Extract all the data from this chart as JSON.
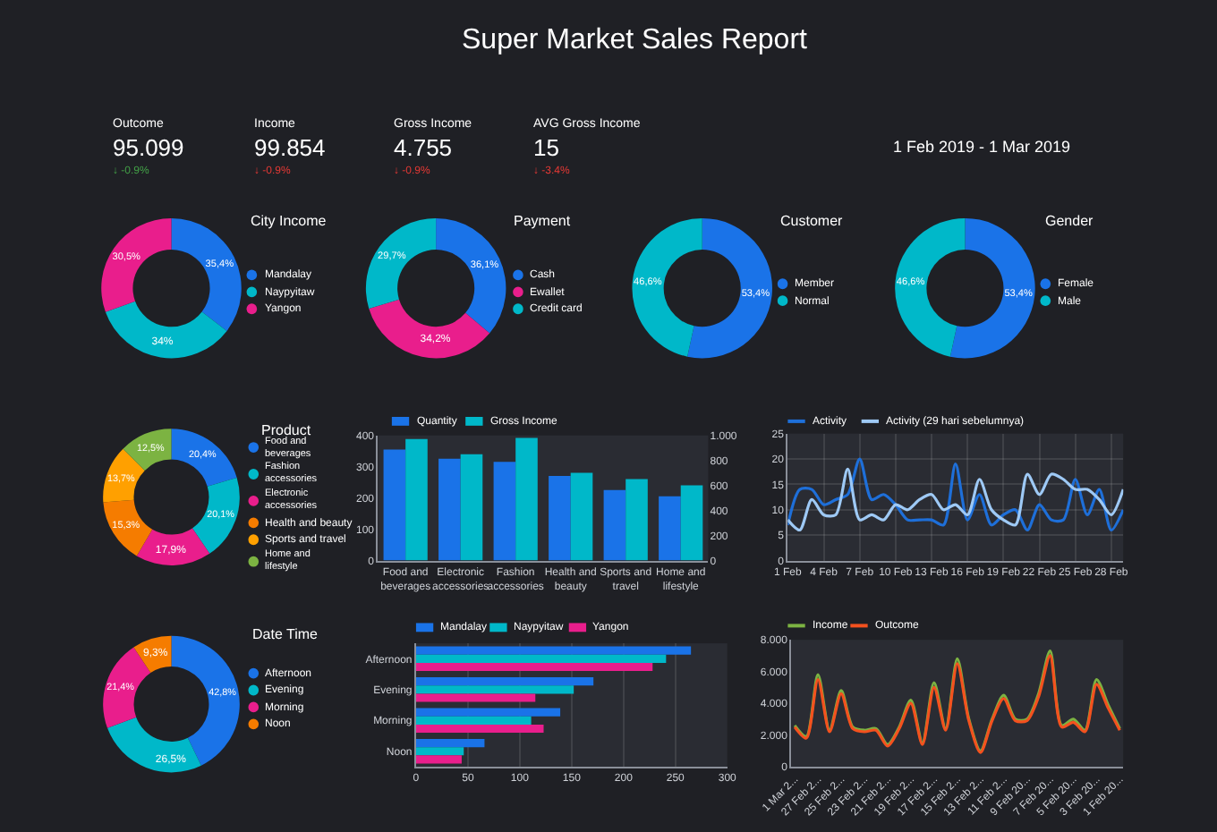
{
  "chart_data": [
    {
      "type": "other",
      "title": "Super Market Sales Report",
      "annotations": [
        "Outcome",
        "95.099",
        "↓ -0.9%",
        "Income",
        "99.854",
        "↓ -0.9%",
        "Gross Income",
        "4.755",
        "↓ -0.9%",
        "AVG Gross Income",
        "15",
        "↓ -3.4%",
        "1 Feb 2019 - 1 Mar 2019"
      ]
    },
    {
      "type": "donut",
      "title": "City Income",
      "categories": [
        "Mandalay",
        "Naypyitaw",
        "Yangon"
      ],
      "values": [
        35.4,
        34,
        30.5
      ],
      "value_labels": [
        "35,4%",
        "34%",
        "30,5%"
      ],
      "colors": [
        "#1a73e8",
        "#00b8c9",
        "#e91e8c"
      ],
      "legend": "right"
    },
    {
      "type": "donut",
      "title": "Payment",
      "categories": [
        "Cash",
        "Ewallet",
        "Credit card"
      ],
      "values": [
        36.1,
        34.2,
        29.7
      ],
      "value_labels": [
        "36,1%",
        "34,2%",
        "29,7%"
      ],
      "colors": [
        "#1a73e8",
        "#e91e8c",
        "#00b8c9"
      ],
      "legend": "right"
    },
    {
      "type": "donut",
      "title": "Customer",
      "categories": [
        "Member",
        "Normal"
      ],
      "values": [
        53.4,
        46.6
      ],
      "value_labels": [
        "53,4%",
        "46,6%"
      ],
      "colors": [
        "#1a73e8",
        "#00b8c9"
      ],
      "legend": "right"
    },
    {
      "type": "donut",
      "title": "Gender",
      "categories": [
        "Female",
        "Male"
      ],
      "values": [
        53.4,
        46.6
      ],
      "value_labels": [
        "53,4%",
        "46,6%"
      ],
      "colors": [
        "#1a73e8",
        "#00b8c9"
      ],
      "legend": "right"
    },
    {
      "type": "donut",
      "title": "Product",
      "categories": [
        "Food and beverages",
        "Fashion accessories",
        "Electronic accessories",
        "Health and beauty",
        "Sports and travel",
        "Home and lifestyle"
      ],
      "values": [
        20.4,
        20.1,
        17.9,
        15.3,
        13.7,
        12.5
      ],
      "value_labels": [
        "20,4%",
        "20,1%",
        "17,9%",
        "15,3%",
        "13,7%",
        "12,5%"
      ],
      "colors": [
        "#1a73e8",
        "#00b8c9",
        "#e91e8c",
        "#f57c00",
        "#ffa000",
        "#7cb342"
      ],
      "legend": "right"
    },
    {
      "type": "bar",
      "categories": [
        "Food and beverages",
        "Electronic accessories",
        "Fashion accessories",
        "Health and beauty",
        "Sports and travel",
        "Home and lifestyle"
      ],
      "series": [
        {
          "name": "Quantity",
          "color": "#1a73e8",
          "values": [
            355,
            325,
            315,
            270,
            225,
            205
          ]
        },
        {
          "name": "Gross Income",
          "color": "#00b8c9",
          "values": [
            970,
            850,
            980,
            700,
            650,
            600
          ],
          "axis": "y2"
        }
      ],
      "ylim": [
        0,
        400
      ],
      "yticks": [
        0,
        100,
        200,
        300,
        400
      ],
      "y2lim": [
        0,
        1000
      ],
      "y2ticks": [
        0,
        200,
        400,
        600,
        800,
        {
          "value": 1000,
          "label": "1.000"
        }
      ],
      "legend": "top left"
    },
    {
      "type": "line",
      "x": [
        "--02-01",
        "--02-02",
        "--02-03",
        "--02-04",
        "--02-05",
        "--02-06",
        "--02-07",
        "--02-08",
        "--02-09",
        "--02-10",
        "--02-11",
        "--02-12",
        "--02-13",
        "--02-14",
        "--02-15",
        "--02-16",
        "--02-17",
        "--02-18",
        "--02-19",
        "--02-20",
        "--02-21",
        "--02-22",
        "--02-23",
        "--02-24",
        "--02-25",
        "--02-26",
        "--02-27",
        "--02-28",
        "--03-01"
      ],
      "series": [
        {
          "name": "Activity",
          "color": "#1e6fd9",
          "values": [
            7,
            14,
            14,
            11,
            12,
            13,
            20,
            12,
            13,
            11,
            8,
            8,
            8,
            7,
            19,
            8,
            13,
            7,
            9,
            10,
            6,
            11,
            8,
            8,
            16,
            9,
            14,
            6,
            10
          ]
        },
        {
          "name": "Activity (29 hari sebelumnya)",
          "color": "#9ec9f5",
          "values": [
            8,
            6,
            12,
            9,
            9,
            18,
            8,
            9,
            8,
            11,
            10,
            12,
            13,
            10,
            11,
            9,
            16,
            10,
            8,
            7,
            17,
            13,
            17,
            16,
            14,
            14,
            12,
            9,
            14
          ]
        }
      ],
      "xlim": [
        "--02-01",
        "--03-01"
      ],
      "xticks": [
        {
          "value": "--02-01",
          "label": "1 Feb"
        },
        {
          "value": "--02-04",
          "label": "4 Feb"
        },
        {
          "value": "--02-07",
          "label": "7 Feb"
        },
        {
          "value": "--02-10",
          "label": "10 Feb"
        },
        {
          "value": "--02-13",
          "label": "13 Feb"
        },
        {
          "value": "--02-16",
          "label": "16 Feb"
        },
        {
          "value": "--02-19",
          "label": "19 Feb"
        },
        {
          "value": "--02-22",
          "label": "22 Feb"
        },
        {
          "value": "--02-25",
          "label": "25 Feb"
        },
        {
          "value": "--02-28",
          "label": "28 Feb"
        }
      ],
      "ylim": [
        0,
        25
      ],
      "yticks": [
        0,
        5,
        10,
        15,
        20,
        25
      ],
      "grid": true,
      "legend": "top left"
    },
    {
      "type": "donut",
      "title": "Date Time",
      "categories": [
        "Afternoon",
        "Evening",
        "Morning",
        "Noon"
      ],
      "values": [
        42.8,
        26.5,
        21.4,
        9.3
      ],
      "value_labels": [
        "42,8%",
        "26,5%",
        "21,4%",
        "9,3%"
      ],
      "colors": [
        "#1a73e8",
        "#00b8c9",
        "#e91e8c",
        "#f57c00"
      ],
      "legend": "right"
    },
    {
      "type": "bar",
      "orientation": "horizontal",
      "categories": [
        "Afternoon",
        "Evening",
        "Morning",
        "Noon"
      ],
      "series": [
        {
          "name": "Mandalay",
          "color": "#1a73e8",
          "values": [
            265,
            171,
            139,
            66
          ]
        },
        {
          "name": "Naypyitaw",
          "color": "#00b8c9",
          "values": [
            241,
            152,
            111,
            46
          ]
        },
        {
          "name": "Yangon",
          "color": "#e91e8c",
          "values": [
            228,
            115,
            123,
            44
          ]
        }
      ],
      "xlim": [
        0,
        300
      ],
      "xticks": [
        0,
        50,
        100,
        150,
        200,
        250,
        300
      ],
      "grid": "x",
      "legend": "top left"
    },
    {
      "type": "line",
      "categories": [
        "1 Mar 2...",
        null,
        "27 Feb 2...",
        null,
        "25 Feb 2...",
        null,
        "23 Feb 2...",
        null,
        "21 Feb 2...",
        null,
        "19 Feb 2...",
        null,
        "17 Feb 2...",
        null,
        "15 Feb 2...",
        null,
        "13 Feb 2...",
        null,
        "11 Feb 2...",
        null,
        "9 Feb 20...",
        null,
        "7 Feb 20...",
        null,
        "5 Feb 20...",
        null,
        "3 Feb 20...",
        null,
        "1 Feb 20..."
      ],
      "series": [
        {
          "name": "Income",
          "color": "#7cb342",
          "values": [
            2600,
            1900,
            5800,
            2300,
            4800,
            2500,
            2300,
            2400,
            1400,
            2500,
            4200,
            1500,
            5300,
            2400,
            6800,
            3000,
            1000,
            3000,
            4500,
            3000,
            3000,
            4600,
            7300,
            2600,
            3000,
            2300,
            5500,
            3900,
            2400
          ]
        },
        {
          "name": "Outcome",
          "color": "#f4511e",
          "values": [
            2500,
            1800,
            5500,
            2200,
            4600,
            2400,
            2200,
            2300,
            1300,
            2400,
            4000,
            1400,
            5000,
            2300,
            6500,
            2900,
            900,
            2900,
            4300,
            2900,
            2900,
            4400,
            7000,
            2500,
            2800,
            2200,
            5200,
            3700,
            2300
          ]
        }
      ],
      "ylim": [
        0,
        8000
      ],
      "yticks": [
        0,
        {
          "value": 2000,
          "label": "2.000"
        },
        {
          "value": 4000,
          "label": "4.000"
        },
        {
          "value": 6000,
          "label": "6.000"
        },
        {
          "value": 8000,
          "label": "8.000"
        }
      ],
      "legend": "top left"
    }
  ]
}
